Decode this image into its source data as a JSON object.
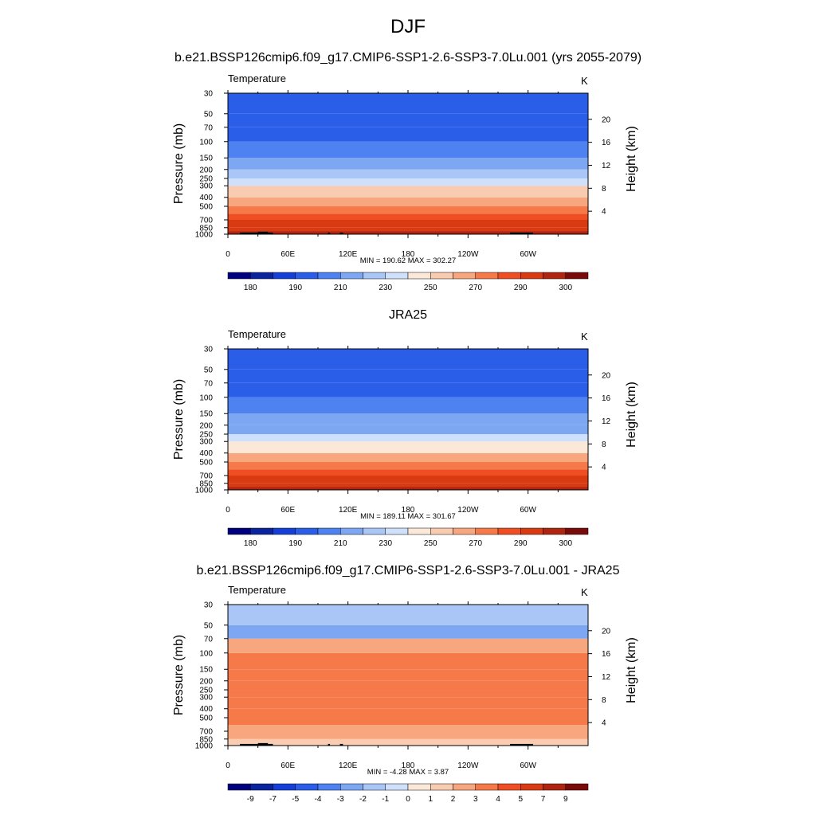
{
  "figure": {
    "title": "DJF",
    "colormap": [
      "#00007f",
      "#0a249e",
      "#1540d8",
      "#2b5ee8",
      "#4d82f0",
      "#7ea7f3",
      "#a9c6f7",
      "#cfe0fa",
      "#fbe8d8",
      "#f9cbb0",
      "#f8a67e",
      "#f6794a",
      "#ef4e22",
      "#d93a12",
      "#b02510",
      "#7a0b0b"
    ],
    "axis_labels": {
      "left": "Pressure (mb)",
      "right": "Height (km)"
    },
    "x_ticks": [
      "0",
      "60E",
      "120E",
      "180",
      "120W",
      "60W"
    ],
    "y_ticks": [
      "30",
      "50",
      "70",
      "100",
      "150",
      "200",
      "250",
      "300",
      "400",
      "500",
      "700",
      "850",
      "1000"
    ],
    "height_ticks": [
      "4",
      "8",
      "12",
      "16",
      "20"
    ]
  },
  "chart_data": [
    {
      "type": "heatmap",
      "title": "b.e21.BSSP126cmip6.f09_g17.CMIP6-SSP1-2.6-SSP3-7.0Lu.001 (yrs 2055-2079)",
      "variable": "Temperature",
      "units": "K",
      "stats": "MIN = 190.62  MAX = 302.27",
      "min": 190.62,
      "max": 302.27,
      "colorbar_labels": [
        "180",
        "190",
        "210",
        "230",
        "250",
        "270",
        "290",
        "300"
      ],
      "pressure_bands": [
        {
          "p": 1000,
          "value": 292
        },
        {
          "p": 925,
          "value": 288
        },
        {
          "p": 850,
          "value": 283
        },
        {
          "p": 700,
          "value": 276
        },
        {
          "p": 600,
          "value": 268
        },
        {
          "p": 500,
          "value": 261
        },
        {
          "p": 400,
          "value": 251
        },
        {
          "p": 300,
          "value": 236
        },
        {
          "p": 250,
          "value": 226
        },
        {
          "p": 200,
          "value": 218
        },
        {
          "p": 150,
          "value": 212
        },
        {
          "p": 100,
          "value": 204
        },
        {
          "p": 70,
          "value": 202
        },
        {
          "p": 50,
          "value": 205
        },
        {
          "p": 30,
          "value": 210
        }
      ],
      "topography": true
    },
    {
      "type": "heatmap",
      "title": "JRA25",
      "variable": "Temperature",
      "units": "K",
      "stats": "MIN = 189.11  MAX = 301.67",
      "min": 189.11,
      "max": 301.67,
      "colorbar_labels": [
        "180",
        "190",
        "210",
        "230",
        "250",
        "270",
        "290",
        "300"
      ],
      "pressure_bands": [
        {
          "p": 1000,
          "value": 290
        },
        {
          "p": 925,
          "value": 286
        },
        {
          "p": 850,
          "value": 281
        },
        {
          "p": 700,
          "value": 274
        },
        {
          "p": 600,
          "value": 266
        },
        {
          "p": 500,
          "value": 258
        },
        {
          "p": 400,
          "value": 247
        },
        {
          "p": 300,
          "value": 232
        },
        {
          "p": 250,
          "value": 223
        },
        {
          "p": 200,
          "value": 216
        },
        {
          "p": 150,
          "value": 210
        },
        {
          "p": 100,
          "value": 203
        },
        {
          "p": 70,
          "value": 202
        },
        {
          "p": 50,
          "value": 205
        },
        {
          "p": 30,
          "value": 210
        }
      ],
      "topography": false
    },
    {
      "type": "heatmap",
      "title": "b.e21.BSSP126cmip6.f09_g17.CMIP6-SSP1-2.6-SSP3-7.0Lu.001 - JRA25",
      "variable": "Temperature",
      "units": "K",
      "stats": "MIN =  -4.28  MAX =   3.87",
      "min": -4.28,
      "max": 3.87,
      "colorbar_labels": [
        "-9",
        "-7",
        "-5",
        "-4",
        "-3",
        "-2",
        "-1",
        "0",
        "1",
        "2",
        "3",
        "4",
        "5",
        "7",
        "9"
      ],
      "pressure_bands": [
        {
          "p": 1000,
          "value": 1.5
        },
        {
          "p": 925,
          "value": 1.5
        },
        {
          "p": 850,
          "value": 2.5
        },
        {
          "p": 700,
          "value": 2.5
        },
        {
          "p": 600,
          "value": 3.5
        },
        {
          "p": 500,
          "value": 3.5
        },
        {
          "p": 400,
          "value": 3.5
        },
        {
          "p": 300,
          "value": 3.5
        },
        {
          "p": 250,
          "value": 3.5
        },
        {
          "p": 200,
          "value": 3.5
        },
        {
          "p": 150,
          "value": 3.5
        },
        {
          "p": 100,
          "value": 2.5
        },
        {
          "p": 70,
          "value": -2.5
        },
        {
          "p": 50,
          "value": -1.5
        },
        {
          "p": 30,
          "value": -0.5
        }
      ],
      "topography": true
    }
  ]
}
